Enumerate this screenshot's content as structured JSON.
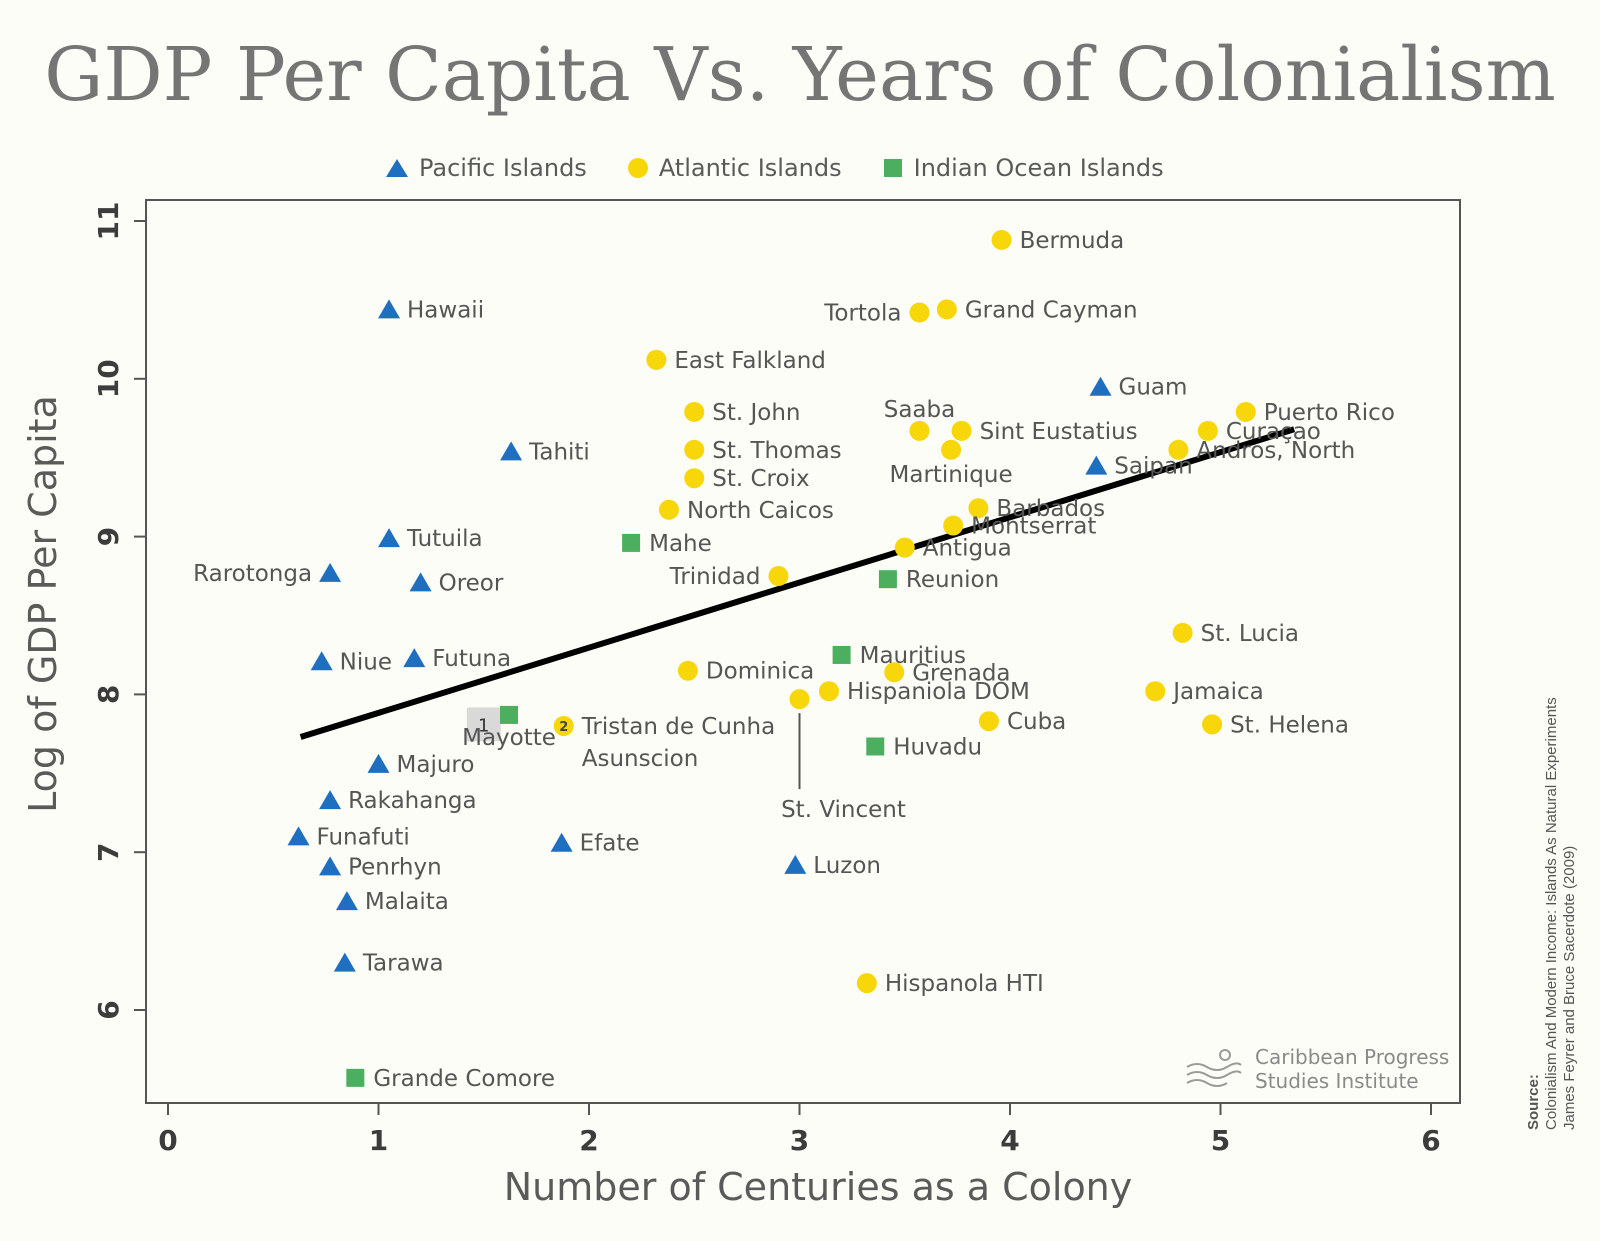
{
  "title": "GDP Per Capita Vs. Years of Colonialism",
  "colors": {
    "pacific": "#1f6fc1",
    "atlantic": "#f7d60a",
    "indian": "#4caf60",
    "trend": "#000000"
  },
  "legend": {
    "pacific": "Pacific Islands",
    "atlantic": "Atlantic Islands",
    "indian": "Indian Ocean Islands"
  },
  "logo": {
    "line1": "Caribbean Progress",
    "line2": "Studies Institute"
  },
  "source": {
    "label": "Source:",
    "line1": "Colonialism And Modern Income: Islands As Natural Experiments",
    "line2": "James Feyrer and Bruce Sacerdote (2009)"
  },
  "chart_data": {
    "type": "scatter",
    "title": "GDP Per Capita Vs. Years of Colonialism",
    "xlabel": "Number of Centuries as a Colony",
    "ylabel": "Log of GDP Per Capita",
    "xlim": [
      -0.1,
      6.1
    ],
    "ylim": [
      5.45,
      11.1
    ],
    "xticks": [
      "0",
      "1",
      "2",
      "3",
      "4",
      "5",
      "6"
    ],
    "yticks": [
      "6",
      "7",
      "8",
      "9",
      "10",
      "11"
    ],
    "trendline": {
      "x": [
        0.63,
        5.35
      ],
      "y": [
        7.73,
        9.68
      ]
    },
    "cluster_badges": [
      {
        "text": "1",
        "x": 1.5,
        "y": 7.81
      },
      {
        "text": "2",
        "x": 1.88,
        "y": 7.8
      }
    ],
    "series": [
      {
        "name": "Pacific Islands",
        "marker": "triangle",
        "points": [
          {
            "label": "Hawaii",
            "x": 1.05,
            "y": 10.44,
            "pos": "right"
          },
          {
            "label": "Tahiti",
            "x": 1.63,
            "y": 9.54,
            "pos": "right"
          },
          {
            "label": "Tutuila",
            "x": 1.05,
            "y": 8.99,
            "pos": "right"
          },
          {
            "label": "Rarotonga",
            "x": 0.77,
            "y": 8.77,
            "pos": "left"
          },
          {
            "label": "Oreor",
            "x": 1.2,
            "y": 8.71,
            "pos": "right"
          },
          {
            "label": "Niue",
            "x": 0.73,
            "y": 8.21,
            "pos": "right"
          },
          {
            "label": "Futuna",
            "x": 1.17,
            "y": 8.23,
            "pos": "right"
          },
          {
            "label": "Majuro",
            "x": 1.0,
            "y": 7.56,
            "pos": "right"
          },
          {
            "label": "Rakahanga",
            "x": 0.77,
            "y": 7.33,
            "pos": "right"
          },
          {
            "label": "Funafuti",
            "x": 0.62,
            "y": 7.1,
            "pos": "right"
          },
          {
            "label": "Penrhyn",
            "x": 0.77,
            "y": 6.91,
            "pos": "right"
          },
          {
            "label": "Malaita",
            "x": 0.85,
            "y": 6.69,
            "pos": "right"
          },
          {
            "label": "Tarawa",
            "x": 0.84,
            "y": 6.3,
            "pos": "right"
          },
          {
            "label": "Efate",
            "x": 1.87,
            "y": 7.06,
            "pos": "right"
          },
          {
            "label": "Luzon",
            "x": 2.98,
            "y": 6.92,
            "pos": "right"
          },
          {
            "label": "Guam",
            "x": 4.43,
            "y": 9.95,
            "pos": "right"
          },
          {
            "label": "Saipan",
            "x": 4.41,
            "y": 9.45,
            "pos": "right"
          }
        ]
      },
      {
        "name": "Atlantic Islands",
        "marker": "circle",
        "points": [
          {
            "label": "Bermuda",
            "x": 3.96,
            "y": 10.88,
            "pos": "right"
          },
          {
            "label": "Tortola",
            "x": 3.57,
            "y": 10.42,
            "pos": "left"
          },
          {
            "label": "Grand Cayman",
            "x": 3.7,
            "y": 10.44,
            "pos": "right"
          },
          {
            "label": "East Falkland",
            "x": 2.32,
            "y": 10.12,
            "pos": "right"
          },
          {
            "label": "St. John",
            "x": 2.5,
            "y": 9.79,
            "pos": "right"
          },
          {
            "label": "St. Thomas",
            "x": 2.5,
            "y": 9.55,
            "pos": "right"
          },
          {
            "label": "St. Croix",
            "x": 2.5,
            "y": 9.37,
            "pos": "right"
          },
          {
            "label": "North Caicos",
            "x": 2.38,
            "y": 9.17,
            "pos": "right"
          },
          {
            "label": "Trinidad",
            "x": 2.9,
            "y": 8.75,
            "pos": "left"
          },
          {
            "label": "Saaba",
            "x": 3.57,
            "y": 9.67,
            "pos": "top"
          },
          {
            "label": "Sint Eustatius",
            "x": 3.77,
            "y": 9.67,
            "pos": "right"
          },
          {
            "label": "Martinique",
            "x": 3.72,
            "y": 9.55,
            "pos": "below"
          },
          {
            "label": "Barbados",
            "x": 3.85,
            "y": 9.18,
            "pos": "right"
          },
          {
            "label": "Montserrat",
            "x": 3.73,
            "y": 9.07,
            "pos": "right"
          },
          {
            "label": "Antigua",
            "x": 3.5,
            "y": 8.93,
            "pos": "right"
          },
          {
            "label": "Puerto Rico",
            "x": 5.12,
            "y": 9.79,
            "pos": "right"
          },
          {
            "label": "Curaçao",
            "x": 4.94,
            "y": 9.67,
            "pos": "right"
          },
          {
            "label": "Andros, North",
            "x": 4.8,
            "y": 9.55,
            "pos": "right"
          },
          {
            "label": "St. Lucia",
            "x": 4.82,
            "y": 8.39,
            "pos": "right"
          },
          {
            "label": "Jamaica",
            "x": 4.69,
            "y": 8.02,
            "pos": "right"
          },
          {
            "label": "St. Helena",
            "x": 4.96,
            "y": 7.81,
            "pos": "right"
          },
          {
            "label": "Dominica",
            "x": 2.47,
            "y": 8.15,
            "pos": "right"
          },
          {
            "label": "Grenada",
            "x": 3.45,
            "y": 8.14,
            "pos": "right"
          },
          {
            "label": "Hispaniola DOM",
            "x": 3.14,
            "y": 8.02,
            "pos": "right"
          },
          {
            "label": "St. Vincent",
            "x": 3.0,
            "y": 7.97,
            "pos": "leader"
          },
          {
            "label": "Cuba",
            "x": 3.9,
            "y": 7.83,
            "pos": "right"
          },
          {
            "label": "Tristan de Cunha",
            "x": 1.88,
            "y": 7.8,
            "pos": "right"
          },
          {
            "label": "Asunscion",
            "x": 1.88,
            "y": 7.8,
            "pos": "below"
          },
          {
            "label": "Hispanola HTI",
            "x": 3.32,
            "y": 6.17,
            "pos": "right"
          }
        ]
      },
      {
        "name": "Indian Ocean Islands",
        "marker": "square",
        "points": [
          {
            "label": "Mahe",
            "x": 2.2,
            "y": 8.96,
            "pos": "right"
          },
          {
            "label": "Reunion",
            "x": 3.42,
            "y": 8.73,
            "pos": "right"
          },
          {
            "label": "Mauritius",
            "x": 3.2,
            "y": 8.25,
            "pos": "right"
          },
          {
            "label": "Huvadu",
            "x": 3.36,
            "y": 7.67,
            "pos": "right"
          },
          {
            "label": "Mayotte",
            "x": 1.62,
            "y": 7.87,
            "pos": "below"
          },
          {
            "label": "Grande Comore",
            "x": 0.89,
            "y": 5.57,
            "pos": "right"
          }
        ]
      }
    ]
  }
}
